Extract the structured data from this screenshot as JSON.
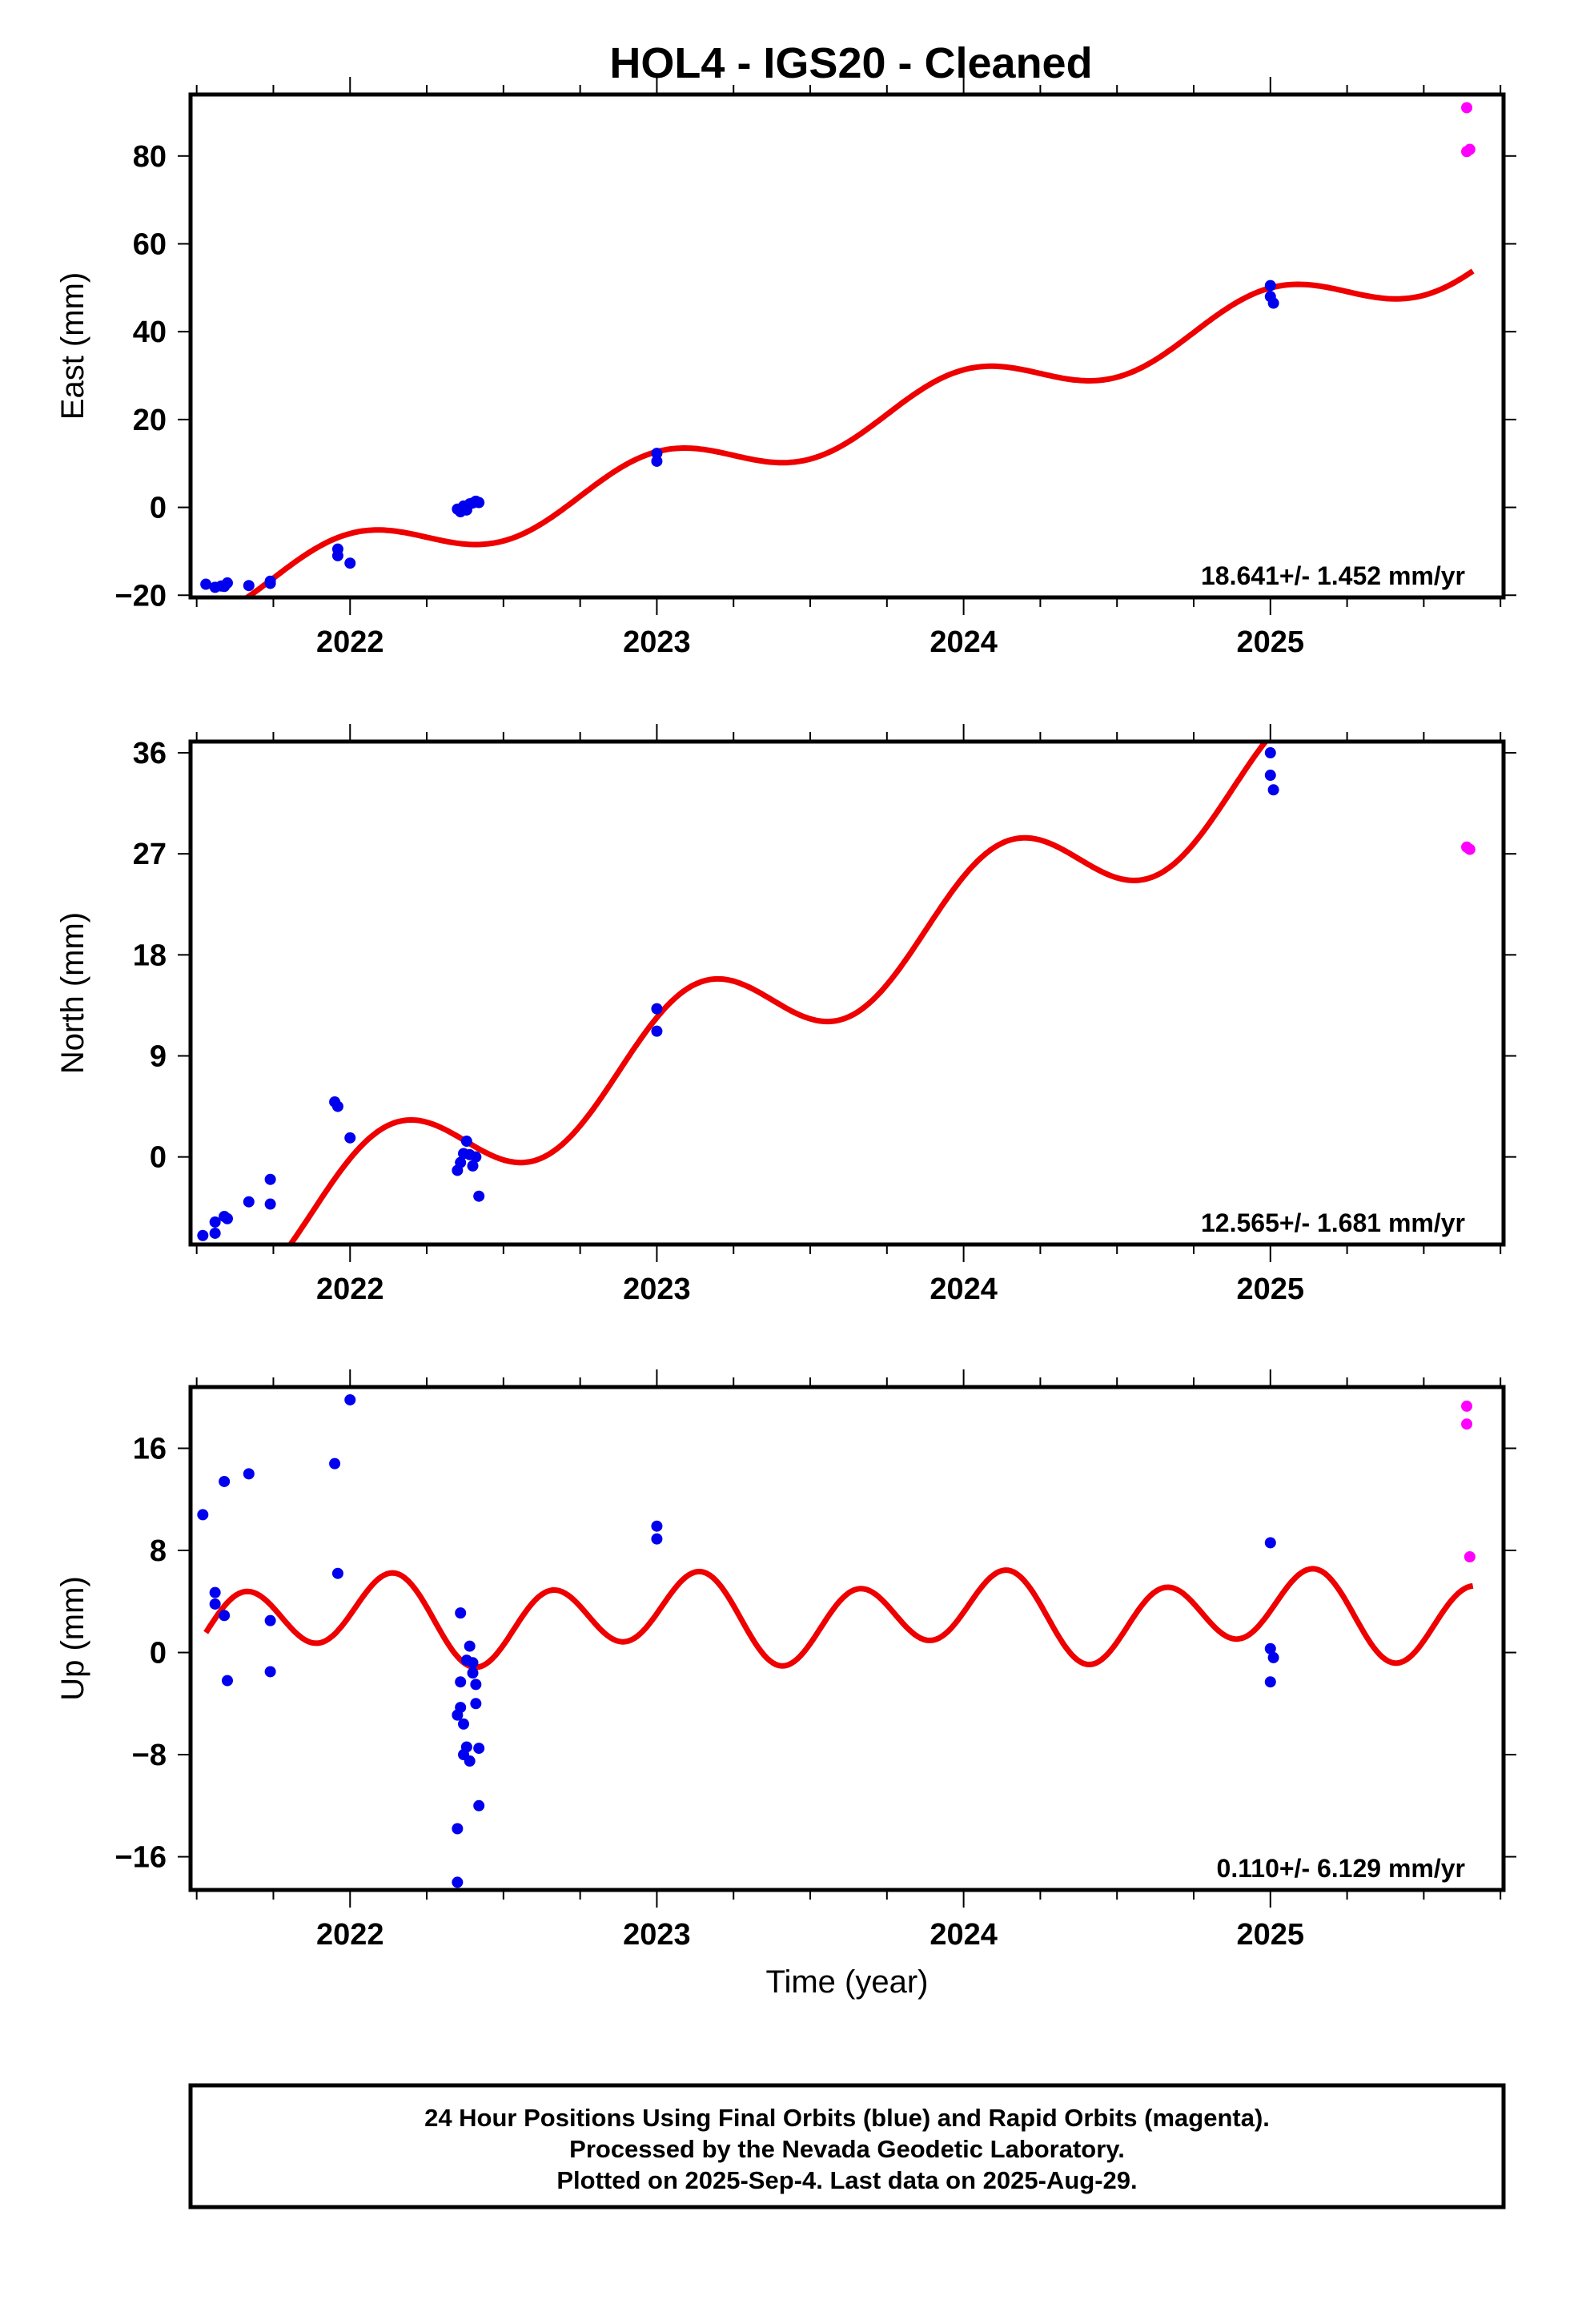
{
  "chart_data": [
    {
      "type": "scatter",
      "title": "HOL4  - IGS20 - Cleaned",
      "ylabel": "East (mm)",
      "xlabel": "",
      "xlim": [
        2021.48,
        2025.76
      ],
      "ylim": [
        -20.5,
        94
      ],
      "yticks": [
        -20,
        0,
        20,
        40,
        60,
        80
      ],
      "ytick_labels": [
        "−20",
        "0",
        "20",
        "40",
        "60",
        "80"
      ],
      "xticks": [
        2022,
        2023,
        2024,
        2025
      ],
      "xtick_labels": [
        "2022",
        "2023",
        "2024",
        "2025"
      ],
      "rate_text": "18.641+/- 1.452 mm/yr",
      "model": {
        "name": "fit",
        "color": "#ee0000",
        "x0": 2023.5,
        "intercept": 16.5,
        "slope": 18.641,
        "annual_sin": 0.0,
        "annual_cos": -5.5,
        "semi_sin": 0.0,
        "semi_cos": 0.0,
        "x_range": [
          2021.53,
          2025.66
        ]
      },
      "series": [
        {
          "name": "Final Orbits",
          "color": "#0000ee",
          "x": [
            2021.53,
            2021.56,
            2021.58,
            2021.59,
            2021.6,
            2021.67,
            2021.74,
            2021.74,
            2021.96,
            2021.96,
            2022.0,
            2022.35,
            2022.36,
            2022.37,
            2022.38,
            2022.39,
            2022.4,
            2022.41,
            2022.42,
            2023.0,
            2023.0,
            2025.0,
            2025.0,
            2025.01
          ],
          "y": [
            -17.5,
            -18.2,
            -17.9,
            -18.0,
            -17.2,
            -17.8,
            -17.3,
            -16.8,
            -9.5,
            -11.0,
            -12.7,
            -0.4,
            -1.0,
            0.3,
            -0.6,
            0.8,
            1.0,
            1.4,
            1.1,
            12.3,
            10.5,
            50.5,
            48.0,
            46.5
          ]
        },
        {
          "name": "Rapid Orbits",
          "color": "#ff00ff",
          "x": [
            2025.64,
            2025.64,
            2025.65
          ],
          "y": [
            91.0,
            81.0,
            81.5
          ]
        }
      ]
    },
    {
      "type": "scatter",
      "ylabel": "North (mm)",
      "xlabel": "",
      "xlim": [
        2021.48,
        2025.76
      ],
      "ylim": [
        -7.8,
        37
      ],
      "yticks": [
        0,
        9,
        18,
        27,
        36
      ],
      "ytick_labels": [
        "0",
        "9",
        "18",
        "27",
        "36"
      ],
      "xticks": [
        2022,
        2023,
        2024,
        2025
      ],
      "xtick_labels": [
        "2022",
        "2023",
        "2024",
        "2025"
      ],
      "rate_text": "12.565+/- 1.681 mm/yr",
      "model": {
        "name": "fit",
        "color": "#ee0000",
        "x0": 2023.5,
        "intercept": 15.5,
        "slope": 12.565,
        "annual_sin": -3.3,
        "annual_cos": -3.2,
        "semi_sin": 0.0,
        "semi_cos": 0.0,
        "x_range": [
          2021.53,
          2025.66
        ]
      },
      "series": [
        {
          "name": "Final Orbits",
          "color": "#0000ee",
          "x": [
            2021.52,
            2021.56,
            2021.56,
            2021.59,
            2021.6,
            2021.67,
            2021.74,
            2021.74,
            2021.95,
            2021.96,
            2022.0,
            2022.35,
            2022.36,
            2022.37,
            2022.38,
            2022.39,
            2022.4,
            2022.41,
            2022.42
          ],
          "y": [
            -7.0,
            -5.8,
            -6.8,
            -5.3,
            -5.5,
            -4.0,
            -2.0,
            -4.2,
            4.9,
            4.5,
            1.7,
            -1.2,
            -0.5,
            0.3,
            1.4,
            0.2,
            -0.8,
            0.0,
            -3.5
          ]
        },
        {
          "name": "Final Orbits 2",
          "color": "#0000ee",
          "x": [
            2023.0,
            2023.0,
            2025.0,
            2025.0,
            2025.01
          ],
          "y": [
            13.2,
            11.2,
            36.0,
            34.0,
            32.7
          ]
        },
        {
          "name": "Rapid Orbits",
          "color": "#ff00ff",
          "x": [
            2025.64,
            2025.65
          ],
          "y": [
            27.6,
            27.4
          ]
        }
      ]
    },
    {
      "type": "scatter",
      "ylabel": "Up (mm)",
      "xlabel": "Time (year)",
      "xlim": [
        2021.48,
        2025.76
      ],
      "ylim": [
        -18.6,
        20.8
      ],
      "yticks": [
        -16,
        -8,
        0,
        8,
        16
      ],
      "ytick_labels": [
        "−16",
        "−8",
        "0",
        "8",
        "16"
      ],
      "xticks": [
        2022,
        2023,
        2024,
        2025
      ],
      "xtick_labels": [
        "2022",
        "2023",
        "2024",
        "2025"
      ],
      "rate_text": "0.110+/- 6.129 mm/yr",
      "model": {
        "name": "fit",
        "color": "#ee0000",
        "x0": 2023.5,
        "intercept": 2.8,
        "slope": 0.11,
        "annual_sin": 0.0,
        "annual_cos": -1.2,
        "semi_sin": 2.7,
        "semi_cos": -0.9,
        "x_range": [
          2021.53,
          2025.66
        ]
      },
      "series": [
        {
          "name": "Final Orbits",
          "color": "#0000ee",
          "x": [
            2021.52,
            2021.56,
            2021.56,
            2021.59,
            2021.59,
            2021.6,
            2021.67,
            2021.74,
            2021.74,
            2021.95,
            2021.96,
            2022.0,
            2022.35,
            2022.35,
            2022.36,
            2022.36,
            2022.37,
            2022.37,
            2022.38,
            2022.38,
            2022.39,
            2022.39,
            2022.4,
            2022.4,
            2022.41,
            2022.41,
            2022.42,
            2022.42,
            2022.36,
            2022.35
          ],
          "y": [
            10.8,
            4.7,
            3.8,
            13.4,
            2.9,
            -2.2,
            14.0,
            2.5,
            -1.5,
            14.8,
            6.2,
            19.8,
            -13.8,
            -18.0,
            3.1,
            -4.3,
            -5.6,
            -8.0,
            -7.4,
            -0.6,
            -8.5,
            0.5,
            -1.6,
            -0.8,
            -2.5,
            -4.0,
            -7.5,
            -12.0,
            -2.3,
            -4.9
          ]
        },
        {
          "name": "Final Orbits 2",
          "color": "#0000ee",
          "x": [
            2023.0,
            2023.0,
            2025.0,
            2025.0,
            2025.01,
            2025.0
          ],
          "y": [
            9.9,
            8.9,
            8.6,
            0.3,
            -0.4,
            -2.3
          ]
        },
        {
          "name": "Rapid Orbits",
          "color": "#ff00ff",
          "x": [
            2025.64,
            2025.64,
            2025.65
          ],
          "y": [
            19.3,
            17.9,
            7.5
          ]
        }
      ]
    }
  ],
  "footer": {
    "line1": "24 Hour Positions Using Final Orbits (blue) and Rapid Orbits (magenta).",
    "line2": "Processed by the Nevada Geodetic Laboratory.",
    "line3": "Plotted on 2025-Sep-4. Last data on 2025-Aug-29."
  }
}
